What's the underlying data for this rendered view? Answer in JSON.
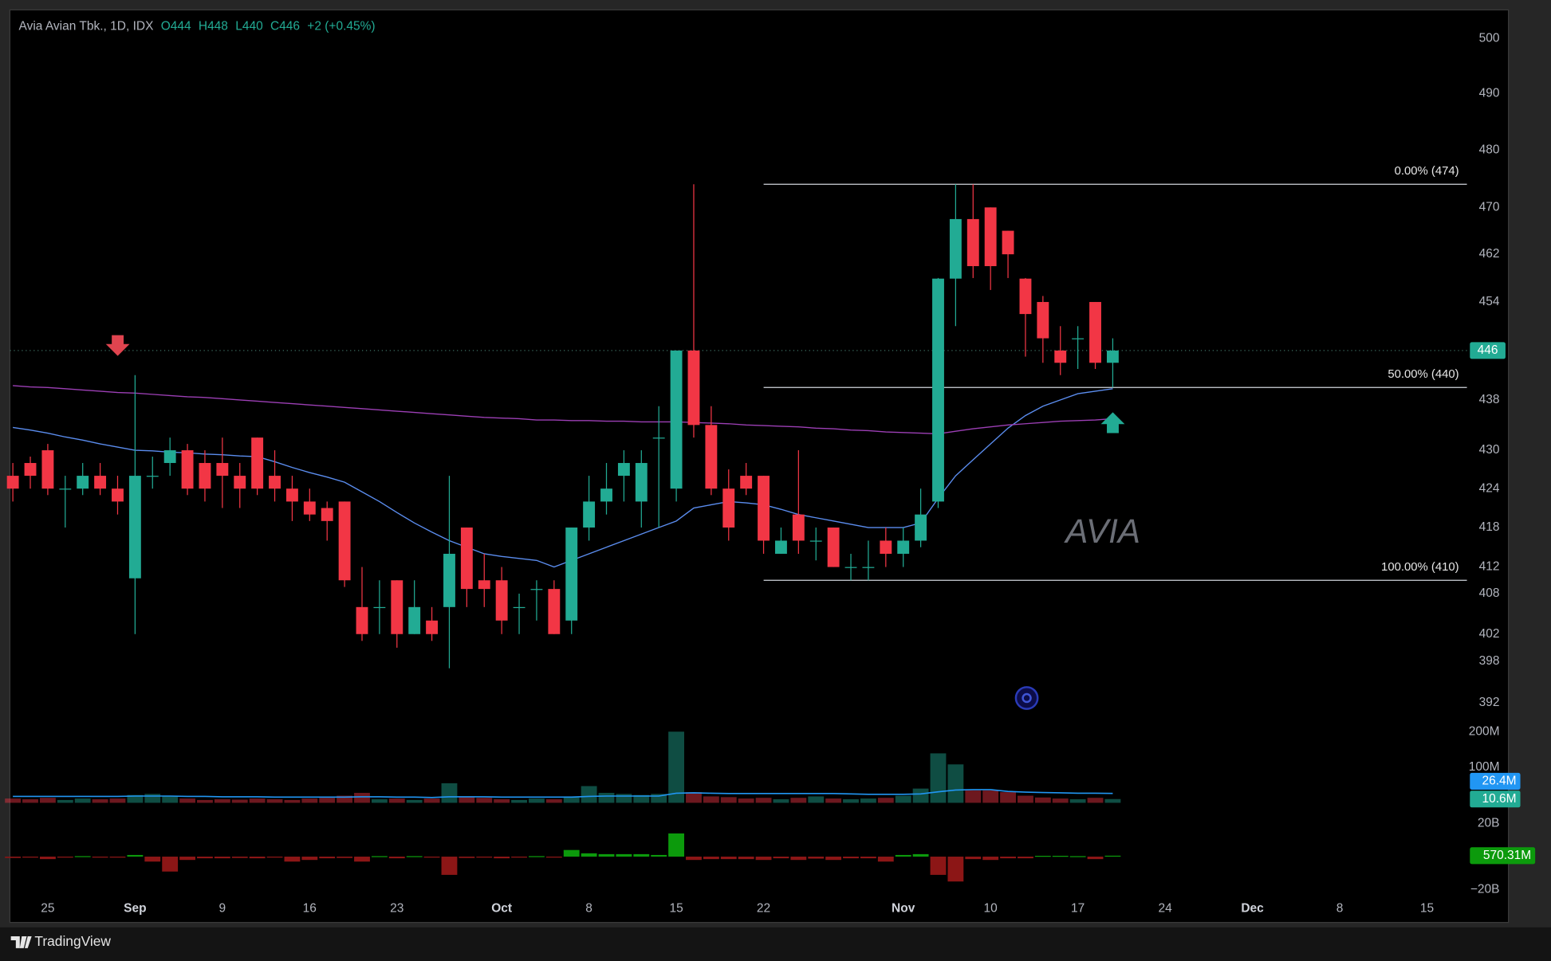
{
  "chart_data": {
    "type": "candlestick",
    "title": "Avia Avian Tbk., 1D, IDX",
    "header_values": [
      "O444",
      "H448",
      "L440",
      "C446",
      "+2 (+0.45%)"
    ],
    "watermark": "AVIA",
    "brand": "TradingView",
    "categories": [
      null,
      null,
      "25",
      null,
      null,
      null,
      null,
      "Sep",
      null,
      null,
      null,
      null,
      "9",
      null,
      null,
      null,
      null,
      "16",
      null,
      null,
      null,
      null,
      "23",
      null,
      null,
      null,
      null,
      null,
      "Oct",
      null,
      null,
      null,
      null,
      "8",
      null,
      null,
      null,
      null,
      "15",
      null,
      null,
      null,
      null,
      "22",
      null,
      null,
      null,
      null,
      null,
      null,
      null,
      "Nov",
      null,
      null,
      null,
      null,
      "10",
      null,
      null,
      null,
      null,
      "17",
      null,
      null,
      null,
      null,
      "24",
      null,
      null,
      null,
      null,
      "Dec",
      null,
      null,
      null,
      null,
      "8",
      null,
      null,
      null,
      null,
      "15",
      null
    ],
    "open": [
      426,
      428,
      430,
      424,
      424,
      426,
      424,
      410.3,
      426,
      428,
      430,
      428,
      428,
      426,
      432,
      426,
      424,
      422,
      421,
      422,
      406,
      406,
      410,
      402,
      404,
      406,
      418,
      410,
      410,
      406,
      408.7,
      408.7,
      404,
      418,
      422,
      426,
      422,
      432,
      424,
      446,
      434,
      424,
      426,
      426,
      414,
      420,
      416,
      418,
      412,
      412,
      416,
      414,
      416,
      422,
      457.9,
      468,
      470,
      466,
      457.9,
      454,
      446,
      448,
      454,
      444,
      null,
      null,
      null,
      null,
      null,
      null,
      null,
      null,
      null,
      null,
      null,
      null,
      null,
      null,
      null,
      null,
      null,
      null,
      null
    ],
    "high": [
      428,
      429,
      431,
      426,
      428,
      428,
      426,
      442,
      429,
      432,
      431,
      430,
      432,
      428,
      432,
      430,
      426,
      424,
      422,
      422,
      412,
      410,
      410,
      410,
      406,
      426,
      418,
      414,
      412,
      408,
      410,
      410,
      418,
      426,
      428,
      430,
      430,
      437,
      446,
      474,
      437,
      427,
      428,
      426,
      418,
      430,
      418,
      418,
      414,
      416,
      418,
      418,
      424,
      458,
      474,
      474,
      470,
      466,
      458,
      455,
      450,
      450,
      454,
      448,
      null,
      null,
      null,
      null,
      null,
      null,
      null,
      null,
      null,
      null,
      null,
      null,
      null,
      null,
      null,
      null,
      null,
      null,
      null
    ],
    "low": [
      422,
      424,
      423,
      418,
      423,
      423,
      420,
      402,
      424,
      426,
      423,
      422,
      421,
      421,
      423,
      422,
      419,
      419,
      416,
      409,
      401,
      402,
      400,
      402,
      401,
      397,
      406,
      406,
      402,
      402,
      404,
      402,
      402,
      416,
      420,
      422,
      418,
      418,
      422,
      432,
      423,
      416,
      423,
      414,
      414,
      414,
      413,
      412,
      410,
      410,
      412,
      412,
      415,
      421,
      450,
      458,
      456,
      458,
      445,
      444,
      442,
      443,
      443,
      440,
      null,
      null,
      null,
      null,
      null,
      null,
      null,
      null,
      null,
      null,
      null,
      null,
      null,
      null,
      null,
      null,
      null,
      null,
      null
    ],
    "close": [
      424,
      426,
      424,
      424,
      426,
      424,
      422,
      426,
      426,
      430,
      424,
      424,
      426,
      424,
      424,
      424,
      422,
      420,
      419,
      410,
      402,
      406,
      402,
      406,
      402,
      414,
      408.7,
      408.7,
      404,
      406,
      408.7,
      402,
      418,
      422,
      424,
      428,
      428,
      432,
      446,
      434,
      424,
      418,
      424,
      416,
      416,
      416,
      416,
      412,
      412,
      412,
      414,
      416,
      420,
      457.9,
      468,
      460,
      460,
      462,
      452,
      448,
      444,
      448,
      444,
      446,
      null,
      null,
      null,
      null,
      null,
      null,
      null,
      null,
      null,
      null,
      null,
      null,
      null,
      null,
      null,
      null,
      null,
      null,
      null
    ],
    "up_color": "#22ab94",
    "down_color": "#f23645",
    "log_scale": true,
    "ylim": [
      389.3,
      504.9
    ],
    "yticks": [
      392,
      398,
      402,
      408,
      412,
      418,
      424,
      430,
      438,
      454,
      462,
      470,
      480,
      490,
      500
    ],
    "lines": [
      {
        "color": "#5b8def",
        "values": [
          433.6,
          433.2,
          432.7,
          432.1,
          431.6,
          431,
          430.5,
          430,
          429.9,
          429.7,
          429.6,
          429.4,
          429.3,
          429.1,
          429,
          428.2,
          427.3,
          426.5,
          425.8,
          425,
          423.5,
          422,
          420.3,
          418.7,
          417.3,
          416,
          415,
          414,
          413.6,
          413.3,
          413,
          412,
          413,
          414,
          415,
          416,
          417,
          418,
          419,
          421,
          421.5,
          422,
          421.8,
          421.5,
          420.8,
          420,
          419.5,
          419,
          418.5,
          418,
          418,
          418,
          418.7,
          422.5,
          426,
          428.5,
          431,
          433.5,
          435.5,
          437,
          438,
          439,
          439.4,
          439.8,
          null,
          null,
          null,
          null,
          null,
          null,
          null,
          null,
          null,
          null,
          null,
          null,
          null,
          null,
          null,
          null,
          null,
          null,
          null
        ]
      },
      {
        "color": "#9c3fb5",
        "values": [
          440.3,
          440.1,
          440,
          439.8,
          439.6,
          439.4,
          439.2,
          439.1,
          438.9,
          438.7,
          438.5,
          438.4,
          438.2,
          438,
          437.8,
          437.6,
          437.4,
          437.2,
          437,
          436.8,
          436.6,
          436.4,
          436.2,
          436,
          435.8,
          435.6,
          435.4,
          435.2,
          435.1,
          435,
          434.8,
          434.8,
          434.7,
          434.7,
          434.6,
          434.6,
          434.5,
          434.5,
          434.5,
          434.4,
          434.3,
          434.2,
          434.0,
          433.9,
          433.8,
          433.7,
          433.5,
          433.4,
          433.2,
          433.1,
          432.9,
          432.8,
          432.7,
          432.6,
          433,
          433.4,
          433.7,
          434,
          434.2,
          434.4,
          434.6,
          434.7,
          434.8,
          435,
          null,
          null,
          null,
          null,
          null,
          null,
          null,
          null,
          null,
          null,
          null,
          null,
          null,
          null,
          null,
          null,
          null,
          null,
          null
        ]
      }
    ],
    "fib_levels": [
      {
        "value": 474,
        "label": "0.00% (474)"
      },
      {
        "value": 440,
        "label": "50.00% (440)"
      },
      {
        "value": 410,
        "label": "100.00% (410)"
      }
    ],
    "volume": {
      "values": [
        12,
        10,
        14,
        8,
        12,
        10,
        12,
        22,
        25,
        18,
        12,
        8,
        10,
        9,
        12,
        10,
        8,
        12,
        14,
        20,
        28,
        10,
        12,
        8,
        12,
        55,
        18,
        14,
        10,
        8,
        12,
        10,
        18,
        47,
        28,
        25,
        22,
        25,
        200,
        30,
        18,
        16,
        12,
        14,
        10,
        14,
        18,
        12,
        10,
        12,
        14,
        20,
        40,
        139,
        108,
        35,
        35,
        30,
        20,
        15,
        12,
        10,
        14,
        10.6,
        null,
        null,
        null,
        null,
        null,
        null,
        null,
        null,
        null,
        null,
        null,
        null,
        null,
        null,
        null,
        null,
        null,
        null,
        null
      ],
      "ma": [
        18,
        18,
        18,
        18,
        18,
        18,
        18,
        19,
        19,
        19,
        18,
        18,
        17,
        17,
        17,
        16,
        16,
        16,
        16,
        16,
        17,
        17,
        16,
        16,
        15,
        17,
        17,
        17,
        16,
        16,
        16,
        16,
        16,
        18,
        19,
        19,
        19,
        19,
        27,
        28,
        27,
        26,
        26,
        26,
        26,
        26,
        26,
        26,
        25,
        24,
        24,
        24,
        25,
        31,
        36,
        37,
        37,
        32,
        30,
        29,
        28,
        27,
        27,
        26.4,
        null,
        null,
        null,
        null,
        null,
        null,
        null,
        null,
        null,
        null,
        null,
        null,
        null,
        null,
        null,
        null,
        null,
        null,
        null
      ],
      "ma_color": "#2196f3",
      "ylim": [
        0,
        214
      ],
      "yticks": [
        {
          "value": 100,
          "label": "100M"
        },
        {
          "value": 200,
          "label": "200M"
        }
      ],
      "badges": [
        {
          "value": 26.4,
          "label": "26.4M",
          "color": "#2196f3"
        },
        {
          "value": 10.6,
          "label": "10.6M",
          "color": "#22ab94"
        }
      ]
    },
    "flow": {
      "values": [
        -0.8,
        -0.6,
        -1.5,
        -0.3,
        0.3,
        -0.4,
        -0.5,
        1,
        -3,
        -9,
        -2,
        -1,
        -1,
        -0.8,
        -1,
        -0.5,
        -3,
        -2,
        -1,
        -0.8,
        -3,
        0.3,
        -1,
        0.3,
        -0.5,
        -11,
        -0.8,
        -0.6,
        -1,
        -0.3,
        0.3,
        -0.5,
        4,
        2,
        1.5,
        1.5,
        1.5,
        1,
        14,
        -2,
        -1.5,
        -1.5,
        -1.5,
        -2,
        -1,
        -2,
        -1.2,
        -2,
        -1,
        -1,
        -3,
        1,
        1.5,
        -11,
        -15,
        -1.5,
        -2,
        -1,
        -1,
        0.5,
        0.5,
        0.3,
        -1.5,
        0.57031,
        null,
        null,
        null,
        null,
        null,
        null,
        null,
        null,
        null,
        null,
        null,
        null,
        null,
        null,
        null,
        null,
        null,
        null,
        null
      ],
      "up_color": "#0c9a0c",
      "down_color": "#8c1616",
      "ylim": [
        -23,
        26.5
      ],
      "yticks": [
        {
          "value": 20,
          "label": "20B"
        },
        {
          "value": -20,
          "label": "−20B"
        }
      ],
      "badge": {
        "value": 0.57031,
        "label": "570.31M",
        "color": "#0c9a0c"
      }
    }
  }
}
